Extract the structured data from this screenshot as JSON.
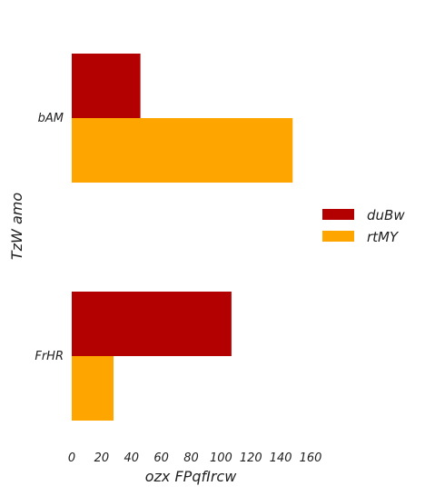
{
  "chart_data": {
    "type": "bar",
    "orientation": "horizontal",
    "categories": [
      "bAM",
      "FrHR"
    ],
    "series": [
      {
        "name": "duBw",
        "color": "#b30000",
        "values": [
          46,
          107
        ]
      },
      {
        "name": "rtMY",
        "color": "#ffa500",
        "values": [
          148,
          28
        ]
      }
    ],
    "xlabel": "ozx FPqfIrcw",
    "ylabel": "TzW amo",
    "xlim": [
      0,
      160
    ],
    "xticks": [
      "0",
      "20",
      "40",
      "60",
      "80",
      "100",
      "120",
      "140",
      "160"
    ],
    "grid": false,
    "legend_position": "right"
  }
}
